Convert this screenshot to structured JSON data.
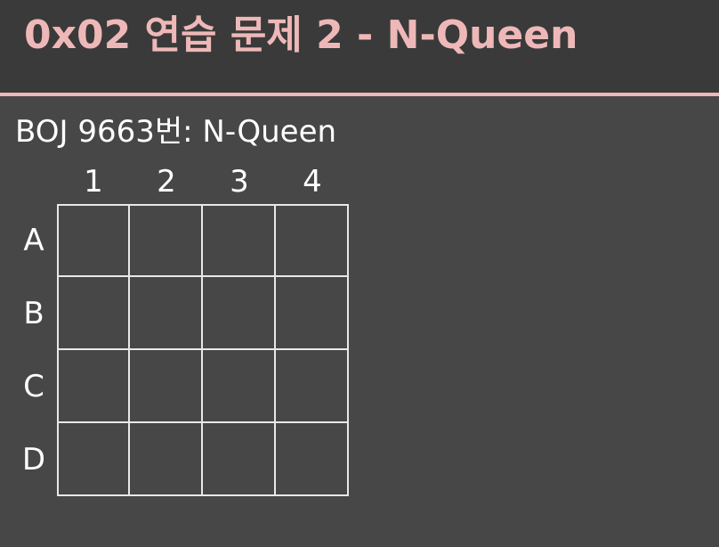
{
  "slide": {
    "title": "0x02  연습 문제 2 - N-Queen",
    "subtitle": "BOJ 9663번: N-Queen"
  },
  "board": {
    "columns": [
      "1",
      "2",
      "3",
      "4"
    ],
    "rows": [
      "A",
      "B",
      "C",
      "D"
    ]
  },
  "colors": {
    "accent": "#efb8b8",
    "background": "#474747",
    "header_background": "#3a3a3a",
    "text": "#ffffff",
    "grid_line": "#e8e8e8"
  }
}
